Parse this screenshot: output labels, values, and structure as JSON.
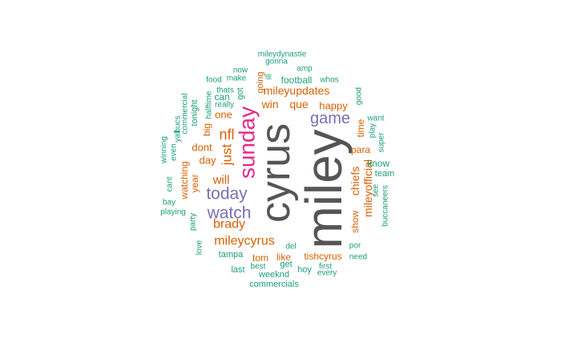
{
  "palette": {
    "gray": "#555555",
    "pink": "#e7298a",
    "purple": "#7570b3",
    "orange": "#d95f02",
    "green": "#1b9e77"
  },
  "words": [
    {
      "text": "miley",
      "color": "gray"
    },
    {
      "text": "cyrus",
      "color": "gray"
    },
    {
      "text": "sunday",
      "color": "pink"
    },
    {
      "text": "game",
      "color": "purple"
    },
    {
      "text": "today",
      "color": "purple"
    },
    {
      "text": "watch",
      "color": "purple"
    },
    {
      "text": "mileycyrus",
      "color": "orange"
    },
    {
      "text": "brady",
      "color": "orange"
    },
    {
      "text": "nfl",
      "color": "orange"
    },
    {
      "text": "just",
      "color": "orange"
    },
    {
      "text": "will",
      "color": "orange"
    },
    {
      "text": "chiefs",
      "color": "orange"
    },
    {
      "text": "mileyofficial",
      "color": "orange"
    },
    {
      "text": "mileyupdates",
      "color": "orange"
    },
    {
      "text": "win",
      "color": "orange"
    },
    {
      "text": "que",
      "color": "orange"
    },
    {
      "text": "happy",
      "color": "orange"
    },
    {
      "text": "one",
      "color": "orange"
    },
    {
      "text": "dont",
      "color": "orange"
    },
    {
      "text": "day",
      "color": "orange"
    },
    {
      "text": "year",
      "color": "orange"
    },
    {
      "text": "watching",
      "color": "orange"
    },
    {
      "text": "para",
      "color": "orange"
    },
    {
      "text": "show",
      "color": "orange"
    },
    {
      "text": "time",
      "color": "orange"
    },
    {
      "text": "tom",
      "color": "orange"
    },
    {
      "text": "like",
      "color": "orange"
    },
    {
      "text": "tishcyrus",
      "color": "orange"
    },
    {
      "text": "going",
      "color": "orange"
    },
    {
      "text": "big",
      "color": "orange"
    },
    {
      "text": "football",
      "color": "green"
    },
    {
      "text": "can",
      "color": "green"
    },
    {
      "text": "got",
      "color": "green"
    },
    {
      "text": "tonight",
      "color": "green"
    },
    {
      "text": "know",
      "color": "green"
    },
    {
      "text": "team",
      "color": "green"
    },
    {
      "text": "tampa",
      "color": "green"
    },
    {
      "text": "last",
      "color": "green"
    },
    {
      "text": "weeknd",
      "color": "green"
    },
    {
      "text": "commercials",
      "color": "green"
    },
    {
      "text": "best",
      "color": "green"
    },
    {
      "text": "get",
      "color": "green"
    },
    {
      "text": "hoy",
      "color": "green"
    },
    {
      "text": "del",
      "color": "green"
    },
    {
      "text": "first",
      "color": "green"
    },
    {
      "text": "every",
      "color": "green"
    },
    {
      "text": "need",
      "color": "green"
    },
    {
      "text": "por",
      "color": "green"
    },
    {
      "text": "buccaneers",
      "color": "green"
    },
    {
      "text": "see",
      "color": "green"
    },
    {
      "text": "super",
      "color": "green"
    },
    {
      "text": "play",
      "color": "green"
    },
    {
      "text": "want",
      "color": "green"
    },
    {
      "text": "good",
      "color": "green"
    },
    {
      "text": "whos",
      "color": "green"
    },
    {
      "text": "amp",
      "color": "green"
    },
    {
      "text": "gonna",
      "color": "green"
    },
    {
      "text": "mileydynastie",
      "color": "green"
    },
    {
      "text": "now",
      "color": "green"
    },
    {
      "text": "make",
      "color": "green"
    },
    {
      "text": "food",
      "color": "green"
    },
    {
      "text": "thats",
      "color": "green"
    },
    {
      "text": "really",
      "color": "green"
    },
    {
      "text": "halftime",
      "color": "green"
    },
    {
      "text": "commercial",
      "color": "green"
    },
    {
      "text": "yall",
      "color": "green"
    },
    {
      "text": "bucs",
      "color": "green"
    },
    {
      "text": "even",
      "color": "green"
    },
    {
      "text": "winning",
      "color": "green"
    },
    {
      "text": "cant",
      "color": "green"
    },
    {
      "text": "bay",
      "color": "green"
    },
    {
      "text": "playing",
      "color": "green"
    },
    {
      "text": "party",
      "color": "green"
    },
    {
      "text": "love",
      "color": "green"
    },
    {
      "text": "ill",
      "color": "green"
    }
  ]
}
